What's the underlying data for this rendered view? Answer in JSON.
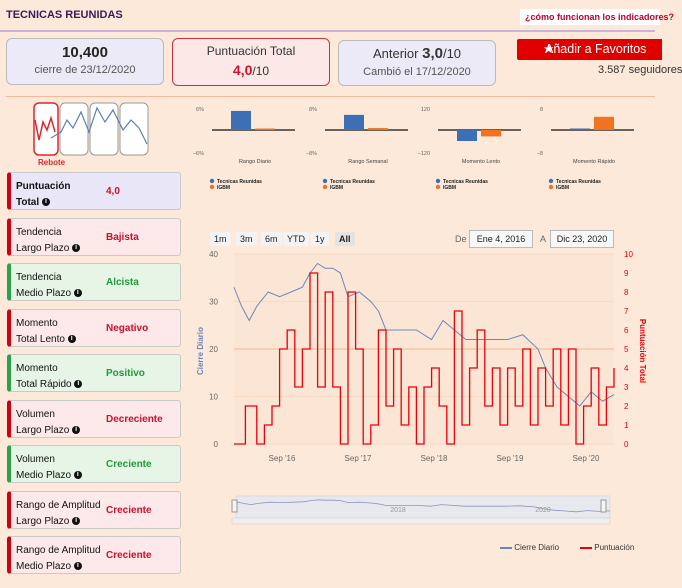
{
  "app": {
    "title": "TECNICAS REUNIDAS",
    "help_link": "¿cómo funcionan los indicadores?"
  },
  "cards": {
    "close": {
      "value": "10,400",
      "caption": "cierre de 23/12/2020"
    },
    "score": {
      "label": "Puntuación Total",
      "value": "4,0",
      "out_of": "/10"
    },
    "previous": {
      "label": "Anterior",
      "value": "3,0",
      "out_of": "/10",
      "caption": "Cambió el 17/12/2020"
    }
  },
  "actions": {
    "favorite_label": "Añadir a Favoritos",
    "followers": "3.587 seguidores"
  },
  "pattern": {
    "label": "Rebote"
  },
  "indicators": [
    {
      "line1": "Puntuación",
      "line2": "Total",
      "value": "4,0",
      "tone": "total"
    },
    {
      "line1": "Tendencia",
      "line2": "Largo Plazo",
      "value": "Bajista",
      "tone": "red"
    },
    {
      "line1": "Tendencia",
      "line2": "Medio Plazo",
      "value": "Alcista",
      "tone": "green"
    },
    {
      "line1": "Momento",
      "line2": "Total Lento",
      "value": "Negativo",
      "tone": "red"
    },
    {
      "line1": "Momento",
      "line2": "Total Rápido",
      "value": "Positivo",
      "tone": "green"
    },
    {
      "line1": "Volumen",
      "line2": "Largo Plazo",
      "value": "Decreciente",
      "tone": "red"
    },
    {
      "line1": "Volumen",
      "line2": "Medio Plazo",
      "value": "Creciente",
      "tone": "green"
    },
    {
      "line1": "Rango de Amplitud",
      "line2": "Largo Plazo",
      "value": "Creciente",
      "tone": "red"
    },
    {
      "line1": "Rango de Amplitud",
      "line2": "Medio Plazo",
      "value": "Creciente",
      "tone": "red"
    }
  ],
  "mini_charts": [
    {
      "title": "Rango Diario",
      "ymax_label": "6%",
      "ymin_label": "−6%",
      "values": [
        5.2,
        0.4
      ],
      "ymax": 6,
      "ymin": -6
    },
    {
      "title": "Rango Semanal",
      "ymax_label": "8%",
      "ymin_label": "−8%",
      "values": [
        5.5,
        0.7
      ],
      "ymax": 8,
      "ymin": -8
    },
    {
      "title": "Momento Lento",
      "ymax_label": "120",
      "ymin_label": "−120",
      "values": [
        -60,
        -35
      ],
      "ymax": 120,
      "ymin": -120
    },
    {
      "title": "Momento Rápido",
      "ymax_label": "8",
      "ymin_label": "−8",
      "values": [
        0.5,
        4.8
      ],
      "ymax": 8,
      "ymin": -8
    }
  ],
  "mini_legend": [
    "Tecnicas Reunidas",
    "IGBM"
  ],
  "range_selector": {
    "buttons": [
      "1m",
      "3m",
      "6m",
      "YTD",
      "1y",
      "All"
    ],
    "active": "All",
    "from_label": "De",
    "from": "Ene 4, 2016",
    "to_label": "A",
    "to": "Dic 23, 2020"
  },
  "navigator_labels": [
    "2018",
    "2020"
  ],
  "chart_data": {
    "type": "line",
    "x_ticks": [
      "Sep '16",
      "Sep '17",
      "Sep '18",
      "Sep '19",
      "Sep '20"
    ],
    "ylabel_left": "Cierre Diario",
    "ylabel_right": "Puntuación Total",
    "ylim_left": [
      0,
      40
    ],
    "yticks_left": [
      0,
      10,
      20,
      30,
      40
    ],
    "ylim_right": [
      0,
      10
    ],
    "yticks_right": [
      0,
      1,
      2,
      3,
      4,
      5,
      6,
      7,
      8,
      9,
      10
    ],
    "reference_line_left": 20,
    "series": [
      {
        "name": "Cierre Diario",
        "axis": "left",
        "color": "#6f86b8",
        "points": [
          [
            0,
            33
          ],
          [
            0.02,
            29
          ],
          [
            0.04,
            26
          ],
          [
            0.06,
            29
          ],
          [
            0.09,
            32
          ],
          [
            0.12,
            31
          ],
          [
            0.15,
            32
          ],
          [
            0.18,
            33
          ],
          [
            0.2,
            36
          ],
          [
            0.22,
            38
          ],
          [
            0.24,
            37
          ],
          [
            0.26,
            37
          ],
          [
            0.28,
            36
          ],
          [
            0.3,
            31
          ],
          [
            0.33,
            32
          ],
          [
            0.36,
            30
          ],
          [
            0.38,
            28
          ],
          [
            0.4,
            24
          ],
          [
            0.44,
            24
          ],
          [
            0.48,
            24
          ],
          [
            0.52,
            22
          ],
          [
            0.55,
            26
          ],
          [
            0.58,
            24
          ],
          [
            0.61,
            22
          ],
          [
            0.64,
            22
          ],
          [
            0.68,
            22
          ],
          [
            0.72,
            22
          ],
          [
            0.76,
            23
          ],
          [
            0.8,
            20
          ],
          [
            0.82,
            16
          ],
          [
            0.85,
            12
          ],
          [
            0.88,
            10
          ],
          [
            0.91,
            8
          ],
          [
            0.94,
            11
          ],
          [
            0.97,
            9
          ],
          [
            1,
            10.4
          ]
        ]
      },
      {
        "name": "Puntuación",
        "axis": "right",
        "color": "#e8000a",
        "points": [
          [
            0,
            0
          ],
          [
            0.03,
            2
          ],
          [
            0.06,
            0
          ],
          [
            0.08,
            1
          ],
          [
            0.1,
            2
          ],
          [
            0.12,
            5
          ],
          [
            0.14,
            6
          ],
          [
            0.16,
            3
          ],
          [
            0.18,
            5
          ],
          [
            0.2,
            9
          ],
          [
            0.22,
            3
          ],
          [
            0.24,
            8
          ],
          [
            0.26,
            3
          ],
          [
            0.28,
            0
          ],
          [
            0.3,
            8
          ],
          [
            0.32,
            5
          ],
          [
            0.34,
            0
          ],
          [
            0.36,
            1
          ],
          [
            0.38,
            6
          ],
          [
            0.4,
            2
          ],
          [
            0.42,
            5
          ],
          [
            0.44,
            1
          ],
          [
            0.46,
            3
          ],
          [
            0.48,
            0
          ],
          [
            0.5,
            3
          ],
          [
            0.52,
            4
          ],
          [
            0.54,
            2
          ],
          [
            0.56,
            0
          ],
          [
            0.58,
            7
          ],
          [
            0.6,
            1
          ],
          [
            0.62,
            4
          ],
          [
            0.64,
            6
          ],
          [
            0.66,
            2
          ],
          [
            0.68,
            4
          ],
          [
            0.7,
            1
          ],
          [
            0.72,
            4
          ],
          [
            0.74,
            2
          ],
          [
            0.76,
            5
          ],
          [
            0.78,
            1
          ],
          [
            0.8,
            4
          ],
          [
            0.82,
            2
          ],
          [
            0.84,
            5
          ],
          [
            0.86,
            1
          ],
          [
            0.88,
            5
          ],
          [
            0.9,
            0
          ],
          [
            0.92,
            2
          ],
          [
            0.94,
            4
          ],
          [
            0.96,
            1
          ],
          [
            0.98,
            3
          ],
          [
            1,
            4
          ]
        ]
      }
    ]
  }
}
